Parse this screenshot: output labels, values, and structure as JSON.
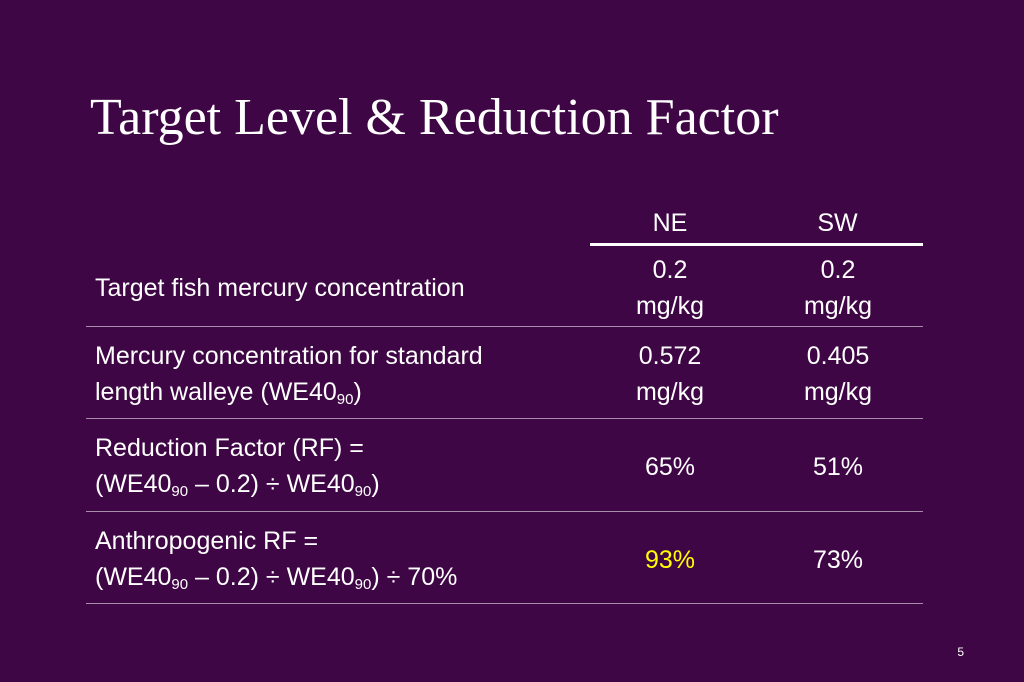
{
  "title": "Target Level & Reduction Factor",
  "columns": [
    "NE",
    "SW"
  ],
  "rows": [
    {
      "label": "Target fish mercury concentration",
      "ne_value": "0.2",
      "ne_unit": "mg/kg",
      "sw_value": "0.2",
      "sw_unit": "mg/kg"
    },
    {
      "label_line1": "Mercury concentration for standard",
      "label_line2_prefix": "length walleye (WE40",
      "label_line2_sub": "90",
      "label_line2_suffix": ")",
      "ne_value": "0.572",
      "ne_unit": "mg/kg",
      "sw_value": "0.405",
      "sw_unit": "mg/kg"
    },
    {
      "label_line1": "Reduction Factor (RF) =",
      "f_a": "(WE40",
      "f_sub1": "90",
      "f_b": " – 0.2) ÷ WE40",
      "f_sub2": "90",
      "f_c": ")",
      "ne_value": "65%",
      "sw_value": "51%"
    },
    {
      "label_line1": "Anthropogenic RF =",
      "f_a": "(WE40",
      "f_sub1": "90",
      "f_b": " – 0.2) ÷ WE40",
      "f_sub2": "90",
      "f_c": ") ÷ 70%",
      "ne_value": "93%",
      "sw_value": "73%"
    }
  ],
  "page_number": "5",
  "colors": {
    "background": "#3f0645",
    "text": "#ffffff",
    "highlight": "#ffff00"
  }
}
